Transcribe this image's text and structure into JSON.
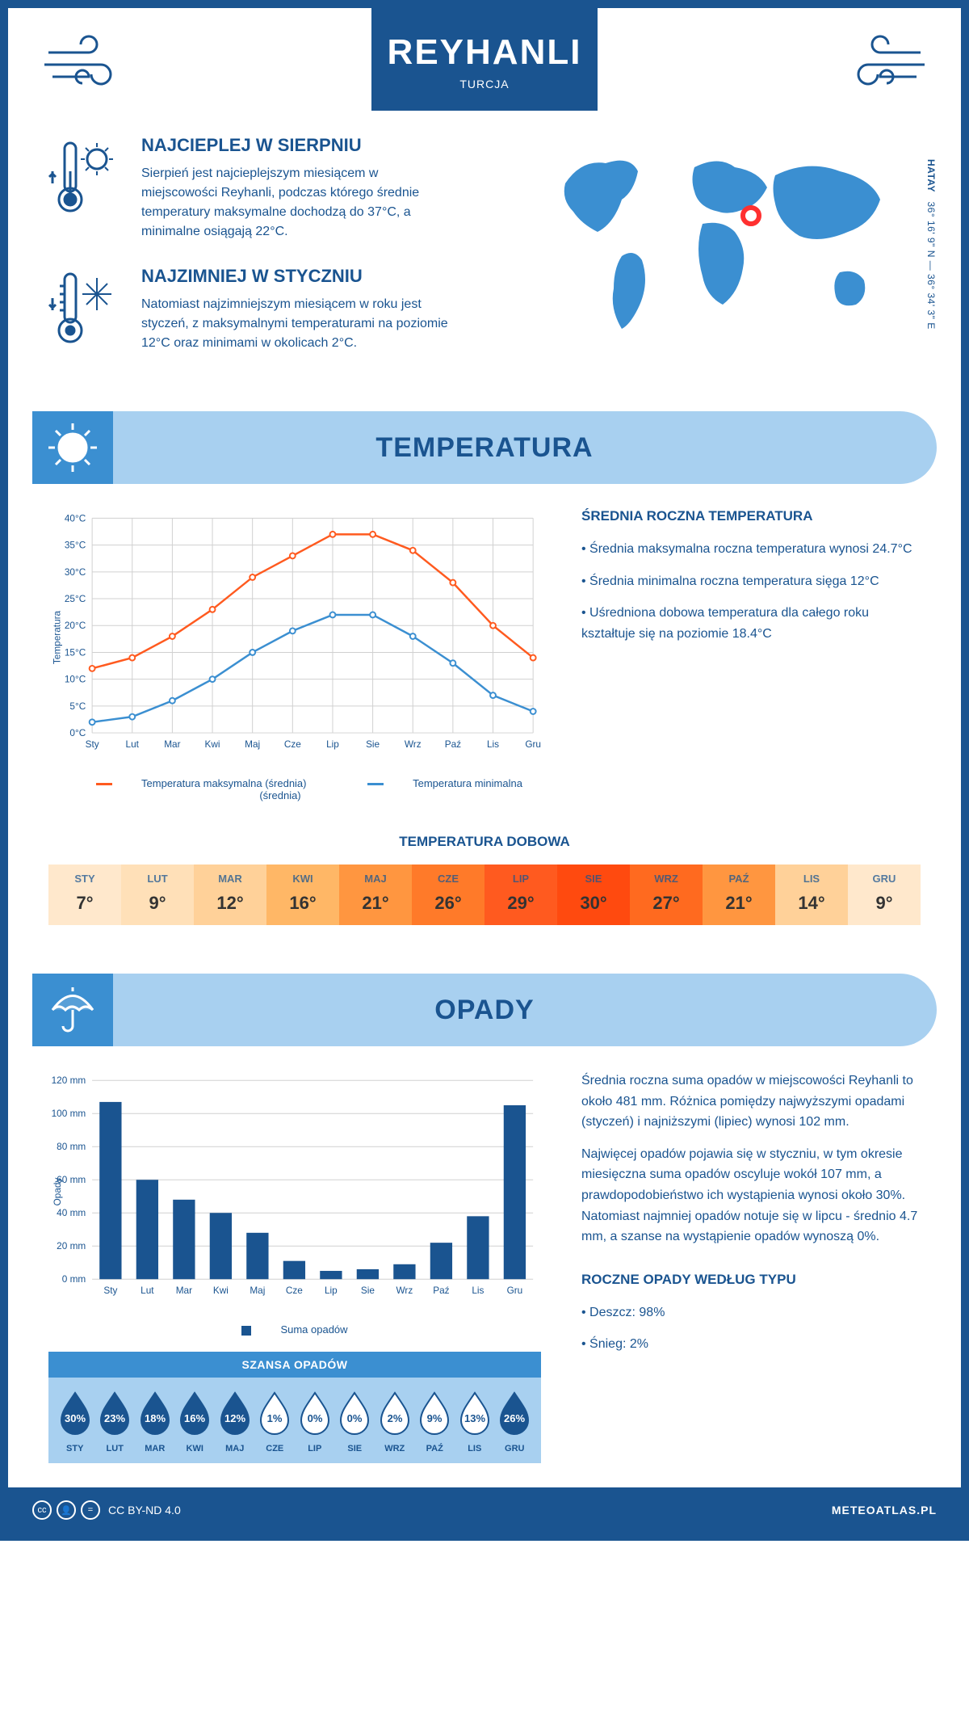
{
  "header": {
    "city": "REYHANLI",
    "country": "TURCJA"
  },
  "coordinates": "36° 16' 9\" N — 36° 34' 3\" E",
  "region": "HATAY",
  "fact_hot": {
    "title": "NAJCIEPLEJ W SIERPNIU",
    "text": "Sierpień jest najcieplejszym miesiącem w miejscowości Reyhanli, podczas którego średnie temperatury maksymalne dochodzą do 37°C, a minimalne osiągają 22°C."
  },
  "fact_cold": {
    "title": "NAJZIMNIEJ W STYCZNIU",
    "text": "Natomiast najzimniejszym miesiącem w roku jest styczeń, z maksymalnymi temperaturami na poziomie 12°C oraz minimami w okolicach 2°C."
  },
  "temperature": {
    "section_title": "TEMPERATURA",
    "avg_title": "ŚREDNIA ROCZNA TEMPERATURA",
    "bullets": [
      "• Średnia maksymalna roczna temperatura wynosi 24.7°C",
      "• Średnia minimalna roczna temperatura sięga 12°C",
      "• Uśredniona dobowa temperatura dla całego roku kształtuje się na poziomie 18.4°C"
    ],
    "chart": {
      "type": "line",
      "months": [
        "Sty",
        "Lut",
        "Mar",
        "Kwi",
        "Maj",
        "Cze",
        "Lip",
        "Sie",
        "Wrz",
        "Paź",
        "Lis",
        "Gru"
      ],
      "max_series": [
        12,
        14,
        18,
        23,
        29,
        33,
        37,
        37,
        34,
        28,
        20,
        14
      ],
      "min_series": [
        2,
        3,
        6,
        10,
        15,
        19,
        22,
        22,
        18,
        13,
        7,
        4
      ],
      "ylim": [
        0,
        40
      ],
      "ytick_step": 5,
      "ylabel": "Temperatura",
      "max_color": "#ff5a1f",
      "min_color": "#3b8fd1",
      "grid_color": "#d0d0d0",
      "label_fontsize": 12,
      "legend_max": "Temperatura maksymalna (średnia)",
      "legend_min": "Temperatura minimalna (średnia)"
    }
  },
  "dobowa": {
    "title": "TEMPERATURA DOBOWA",
    "months": [
      "STY",
      "LUT",
      "MAR",
      "KWI",
      "MAJ",
      "CZE",
      "LIP",
      "SIE",
      "WRZ",
      "PAŹ",
      "LIS",
      "GRU"
    ],
    "values": [
      "7°",
      "9°",
      "12°",
      "16°",
      "21°",
      "26°",
      "29°",
      "30°",
      "27°",
      "21°",
      "14°",
      "9°"
    ],
    "colors": [
      "#ffe8cc",
      "#ffe0b8",
      "#ffd199",
      "#ffb766",
      "#ff9640",
      "#ff7a29",
      "#ff5a1f",
      "#ff4a0f",
      "#ff6a1f",
      "#ff9640",
      "#ffd199",
      "#ffe8cc"
    ]
  },
  "precip": {
    "section_title": "OPADY",
    "text1": "Średnia roczna suma opadów w miejscowości Reyhanli to około 481 mm. Różnica pomiędzy najwyższymi opadami (styczeń) i najniższymi (lipiec) wynosi 102 mm.",
    "text2": "Najwięcej opadów pojawia się w styczniu, w tym okresie miesięczna suma opadów oscyluje wokół 107 mm, a prawdopodobieństwo ich wystąpienia wynosi około 30%. Natomiast najmniej opadów notuje się w lipcu - średnio 4.7 mm, a szanse na wystąpienie opadów wynoszą 0%.",
    "chart": {
      "type": "bar",
      "months": [
        "Sty",
        "Lut",
        "Mar",
        "Kwi",
        "Maj",
        "Cze",
        "Lip",
        "Sie",
        "Wrz",
        "Paź",
        "Lis",
        "Gru"
      ],
      "values": [
        107,
        60,
        48,
        40,
        28,
        11,
        5,
        6,
        9,
        22,
        38,
        105
      ],
      "ylim": [
        0,
        120
      ],
      "ytick_step": 20,
      "ylabel": "Opady",
      "unit": "mm",
      "bar_color": "#1a5490",
      "grid_color": "#d0d0d0",
      "legend": "Suma opadów"
    },
    "chance": {
      "title": "SZANSA OPADÓW",
      "months": [
        "STY",
        "LUT",
        "MAR",
        "KWI",
        "MAJ",
        "CZE",
        "LIP",
        "SIE",
        "WRZ",
        "PAŹ",
        "LIS",
        "GRU"
      ],
      "values": [
        "30%",
        "23%",
        "18%",
        "16%",
        "12%",
        "1%",
        "0%",
        "0%",
        "2%",
        "9%",
        "13%",
        "26%"
      ],
      "filled": [
        true,
        true,
        true,
        true,
        true,
        false,
        false,
        false,
        false,
        false,
        false,
        true
      ],
      "drop_fill": "#1a5490",
      "drop_empty": "#ffffff",
      "drop_stroke": "#1a5490"
    },
    "type_title": "ROCZNE OPADY WEDŁUG TYPU",
    "type_rain": "• Deszcz: 98%",
    "type_snow": "• Śnieg: 2%"
  },
  "footer": {
    "license": "CC BY-ND 4.0",
    "site": "METEOATLAS.PL"
  },
  "colors": {
    "primary": "#1a5490",
    "light_blue": "#a8d0f0",
    "mid_blue": "#3b8fd1",
    "orange": "#ff5a1f"
  }
}
